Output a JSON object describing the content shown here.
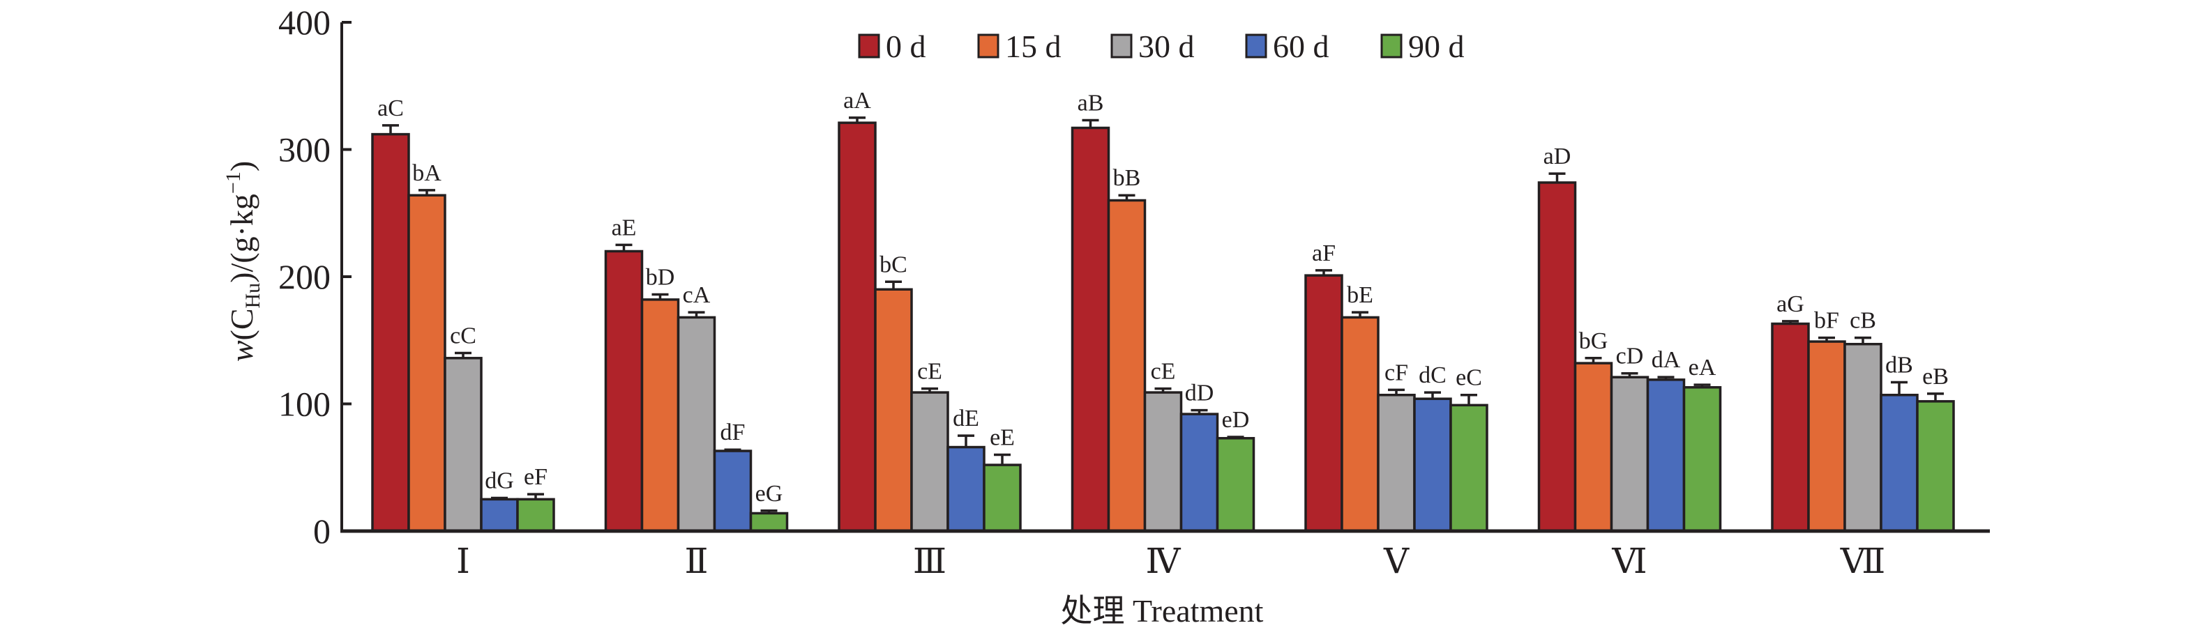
{
  "chart_data": {
    "type": "bar",
    "title": "",
    "xlabel": "处理 Treatment",
    "ylabel": {
      "prefix": "w(C",
      "subscript": "Hu",
      "middle": ")/(g·kg",
      "superscript": "−1",
      "suffix": ")"
    },
    "ylim": [
      0,
      400
    ],
    "yticks": [
      0,
      100,
      200,
      300,
      400
    ],
    "ytick_labels": [
      "0",
      "100",
      "200",
      "300",
      "400"
    ],
    "grid": false,
    "legend_position": "top-center",
    "categories": [
      "Ⅰ",
      "Ⅱ",
      "Ⅲ",
      "Ⅳ",
      "Ⅴ",
      "Ⅵ",
      "Ⅶ"
    ],
    "series": [
      {
        "name": "0 d",
        "color": "#b0232a",
        "values": [
          312,
          220,
          321,
          317,
          201,
          274,
          163
        ],
        "errors": [
          7,
          5,
          4,
          6,
          4,
          7,
          2
        ],
        "labels": [
          "aC",
          "aE",
          "aA",
          "aB",
          "aF",
          "aD",
          "aG"
        ]
      },
      {
        "name": "15 d",
        "color": "#e26a36",
        "values": [
          264,
          182,
          190,
          260,
          168,
          132,
          149
        ],
        "errors": [
          4,
          4,
          6,
          4,
          4,
          4,
          3
        ],
        "labels": [
          "bA",
          "bD",
          "bC",
          "bB",
          "bE",
          "bG",
          "bF"
        ]
      },
      {
        "name": "30 d",
        "color": "#a7a6a7",
        "values": [
          136,
          168,
          109,
          109,
          107,
          121,
          147
        ],
        "errors": [
          4,
          4,
          3,
          3,
          4,
          3,
          5
        ],
        "labels": [
          "cC",
          "cA",
          "cE",
          "cE",
          "cF",
          "cD",
          "cB"
        ]
      },
      {
        "name": "60 d",
        "color": "#4a6cbb",
        "values": [
          25,
          63,
          66,
          92,
          104,
          119,
          107
        ],
        "errors": [
          1,
          1,
          9,
          3,
          5,
          2,
          10
        ],
        "labels": [
          "dG",
          "dF",
          "dE",
          "dD",
          "dC",
          "dA",
          "dB"
        ]
      },
      {
        "name": "90 d",
        "color": "#68aa47",
        "values": [
          25,
          14,
          52,
          73,
          99,
          113,
          102
        ],
        "errors": [
          4,
          2,
          8,
          1,
          8,
          2,
          6
        ],
        "labels": [
          "eF",
          "eG",
          "eE",
          "eD",
          "eC",
          "eA",
          "eB"
        ]
      }
    ]
  }
}
